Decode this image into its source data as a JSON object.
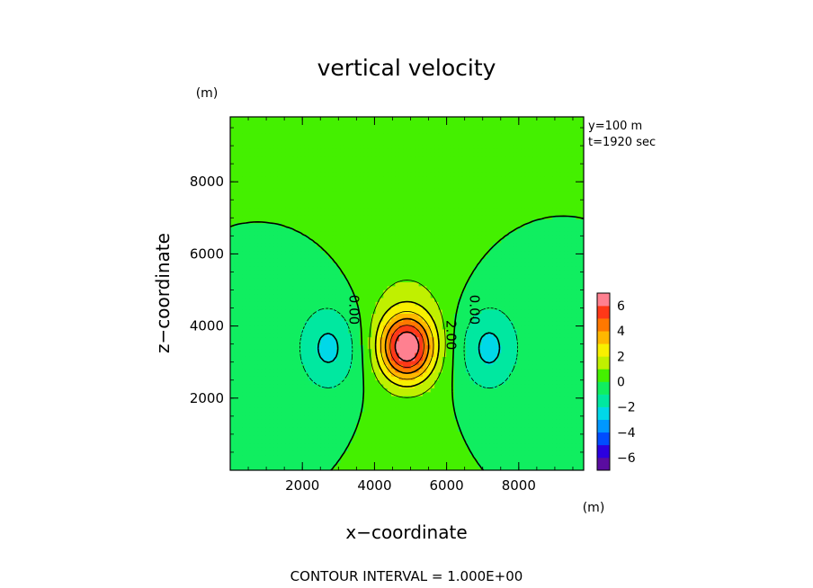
{
  "chart_data": {
    "type": "contour",
    "title": "vertical velocity",
    "xlabel": "x−coordinate",
    "ylabel": "z−coordinate",
    "x_unit": "(m)",
    "y_unit": "(m)",
    "xlim": [
      0,
      9800
    ],
    "ylim": [
      0,
      9800
    ],
    "x_ticks": [
      2000,
      4000,
      6000,
      8000
    ],
    "y_ticks": [
      2000,
      4000,
      6000,
      8000
    ],
    "x_tick_labels": [
      "2000",
      "4000",
      "6000",
      "8000"
    ],
    "y_tick_labels": [
      "2000",
      "4000",
      "6000",
      "8000"
    ],
    "info": [
      "y=100 m",
      "t=1920 sec"
    ],
    "footer": "CONTOUR INTERVAL = 1.000E+00",
    "contour_interval": 1.0,
    "contour_labels": [
      {
        "text": "0.00",
        "x": 3300,
        "z": 4450,
        "rotate": 90
      },
      {
        "text": "0.00",
        "x": 6650,
        "z": 4450,
        "rotate": 90
      },
      {
        "text": "2.00",
        "x": 6000,
        "z": 3750,
        "rotate": 90
      }
    ],
    "field": {
      "updraft": {
        "center_x": 4900,
        "center_z": 3400,
        "peak": 6.0
      },
      "downdrafts": [
        {
          "center_x": 2750,
          "center_z": 3400,
          "min": -2.3
        },
        {
          "center_x": 7150,
          "center_z": 3400,
          "min": -2.3
        }
      ]
    },
    "colorbar": {
      "range": [
        -7,
        7
      ],
      "levels": [
        -7,
        -6,
        -5,
        -4,
        -3,
        -2,
        -1,
        0,
        1,
        2,
        3,
        4,
        5,
        6,
        7
      ],
      "tick_values": [
        -6,
        -4,
        -2,
        0,
        2,
        4,
        6
      ],
      "tick_labels": [
        "−6",
        "−4",
        "−2",
        "0",
        "2",
        "4",
        "6"
      ],
      "colors": [
        "#5a0ca0",
        "#2b00e0",
        "#004cff",
        "#0098ff",
        "#00d8e8",
        "#00e8a0",
        "#10ee60",
        "#44f000",
        "#c0f000",
        "#f8f000",
        "#ffb800",
        "#ff7800",
        "#ff3818",
        "#ff8090"
      ]
    }
  }
}
